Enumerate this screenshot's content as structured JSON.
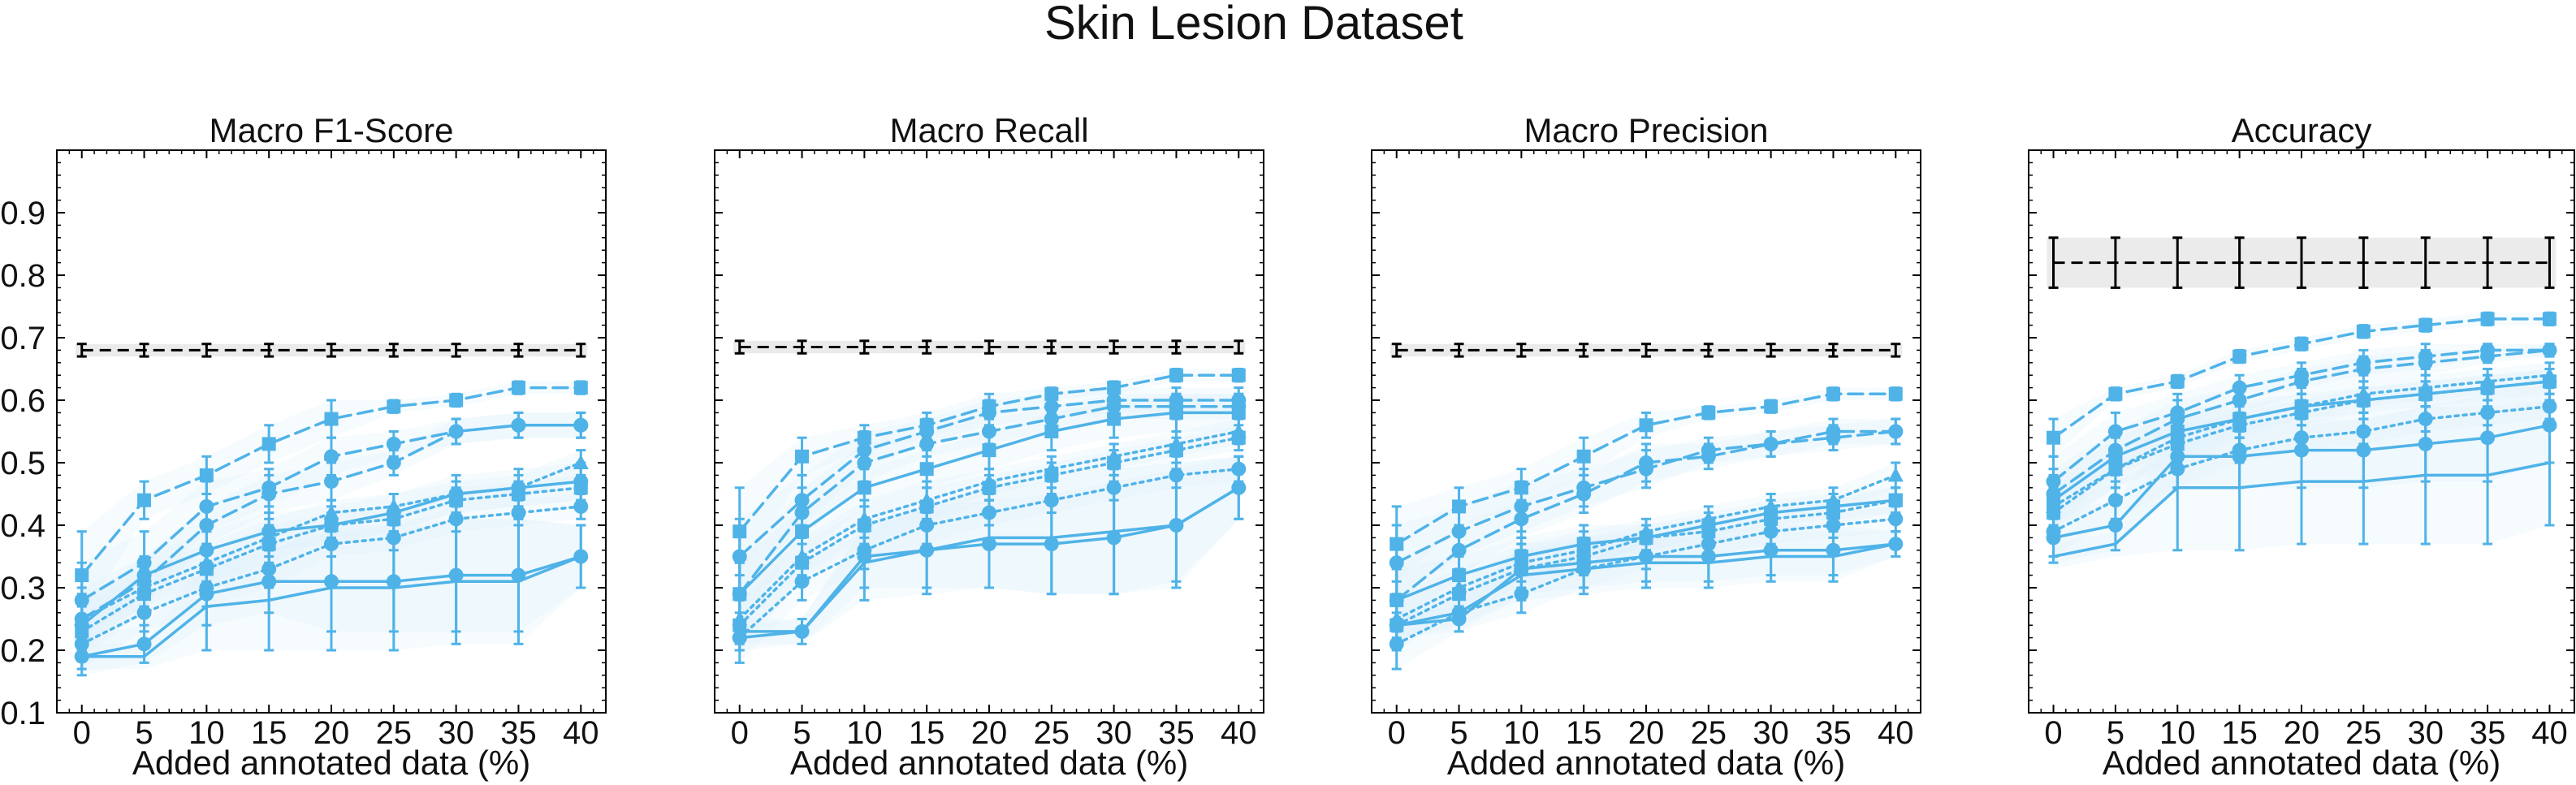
{
  "figure": {
    "title": "Skin Lesion Dataset"
  },
  "style": {
    "series_color": "#4FB3E8",
    "band_color": "#DDF0FB",
    "baseline_color": "#000000",
    "baseline_band_color": "#EBEBEB"
  },
  "chart_data": [
    {
      "type": "line",
      "title": "Macro F1-Score",
      "xlabel": "Added annotated data (%)",
      "ylabel": "",
      "x": [
        0,
        5,
        10,
        15,
        20,
        25,
        30,
        35,
        40
      ],
      "xlim": [
        -2,
        42
      ],
      "ylim": [
        0.1,
        1.0
      ],
      "yticks": [
        0.1,
        0.2,
        0.3,
        0.4,
        0.5,
        0.6,
        0.7,
        0.8,
        0.9
      ],
      "show_yticklabels": true,
      "baseline": {
        "value": 0.68,
        "err": 0.01
      },
      "series": [
        {
          "linestyle": "dashed",
          "marker": "square",
          "values": [
            0.32,
            0.44,
            0.48,
            0.53,
            0.57,
            0.59,
            0.6,
            0.62,
            0.62
          ],
          "err": [
            0.07,
            0.03,
            0.03,
            0.03,
            0.03,
            0.01,
            0.01,
            0.01,
            0.01
          ]
        },
        {
          "linestyle": "dashed",
          "marker": "circle",
          "values": [
            0.28,
            0.34,
            0.43,
            0.46,
            0.51,
            0.53,
            0.55,
            0.56,
            0.56
          ],
          "err": [
            0.06,
            0.05,
            0.04,
            0.03,
            0.03,
            0.02,
            0.02,
            0.02,
            0.02
          ]
        },
        {
          "linestyle": "dashed",
          "marker": "circle",
          "values": [
            0.25,
            0.31,
            0.4,
            0.45,
            0.47,
            0.5,
            0.55,
            0.56,
            0.56
          ],
          "err": [
            0.05,
            0.04,
            0.03,
            0.03,
            0.03,
            0.02,
            0.02,
            0.02,
            0.02
          ]
        },
        {
          "linestyle": "dotted",
          "marker": "triangle",
          "values": [
            0.25,
            0.3,
            0.34,
            0.38,
            0.42,
            0.43,
            0.45,
            0.46,
            0.5
          ],
          "err": [
            0.04,
            0.03,
            0.03,
            0.03,
            0.02,
            0.02,
            0.02,
            0.02,
            0.02
          ]
        },
        {
          "linestyle": "dotted",
          "marker": "square",
          "values": [
            0.23,
            0.29,
            0.33,
            0.37,
            0.4,
            0.41,
            0.44,
            0.45,
            0.46
          ],
          "err": [
            0.04,
            0.03,
            0.03,
            0.03,
            0.02,
            0.02,
            0.02,
            0.02,
            0.02
          ]
        },
        {
          "linestyle": "dotted",
          "marker": "circle",
          "values": [
            0.21,
            0.26,
            0.3,
            0.33,
            0.37,
            0.38,
            0.41,
            0.42,
            0.43
          ],
          "err": [
            0.04,
            0.03,
            0.03,
            0.03,
            0.02,
            0.02,
            0.02,
            0.02,
            0.02
          ]
        },
        {
          "linestyle": "solid",
          "marker": "circle",
          "values": [
            0.24,
            0.32,
            0.36,
            0.39,
            0.4,
            0.42,
            0.45,
            0.46,
            0.47
          ],
          "err": [
            0.04,
            0.03,
            0.03,
            0.03,
            0.03,
            0.03,
            0.03,
            0.03,
            0.03
          ]
        },
        {
          "linestyle": "solid",
          "marker": "circle",
          "values": [
            0.19,
            0.21,
            0.29,
            0.31,
            0.31,
            0.31,
            0.32,
            0.32,
            0.35
          ],
          "err": [
            0.03,
            0.03,
            0.05,
            0.05,
            0.08,
            0.08,
            0.09,
            0.09,
            0.05
          ]
        },
        {
          "linestyle": "solid",
          "marker": "none",
          "values": [
            0.19,
            0.19,
            0.27,
            0.28,
            0.3,
            0.3,
            0.31,
            0.31,
            0.35
          ],
          "err": [
            0,
            0,
            0.07,
            0.08,
            0.1,
            0.1,
            0.1,
            0.1,
            0.05
          ]
        }
      ]
    },
    {
      "type": "line",
      "title": "Macro Recall",
      "xlabel": "Added annotated data (%)",
      "ylabel": "",
      "x": [
        0,
        5,
        10,
        15,
        20,
        25,
        30,
        35,
        40
      ],
      "xlim": [
        -2,
        42
      ],
      "ylim": [
        0.1,
        1.0
      ],
      "yticks": [
        0.1,
        0.2,
        0.3,
        0.4,
        0.5,
        0.6,
        0.7,
        0.8,
        0.9
      ],
      "show_yticklabels": false,
      "baseline": {
        "value": 0.685,
        "err": 0.01
      },
      "series": [
        {
          "linestyle": "dashed",
          "marker": "square",
          "values": [
            0.39,
            0.51,
            0.54,
            0.56,
            0.59,
            0.61,
            0.62,
            0.64,
            0.64
          ],
          "err": [
            0.07,
            0.03,
            0.02,
            0.02,
            0.02,
            0.01,
            0.01,
            0.01,
            0.01
          ]
        },
        {
          "linestyle": "dashed",
          "marker": "circle",
          "values": [
            0.35,
            0.44,
            0.52,
            0.55,
            0.58,
            0.59,
            0.6,
            0.6,
            0.6
          ],
          "err": [
            0.06,
            0.04,
            0.03,
            0.02,
            0.02,
            0.02,
            0.02,
            0.02,
            0.02
          ]
        },
        {
          "linestyle": "dashed",
          "marker": "circle",
          "values": [
            0.29,
            0.42,
            0.5,
            0.53,
            0.55,
            0.57,
            0.59,
            0.59,
            0.59
          ],
          "err": [
            0.05,
            0.04,
            0.03,
            0.02,
            0.02,
            0.02,
            0.02,
            0.02,
            0.02
          ]
        },
        {
          "linestyle": "dotted",
          "marker": "triangle",
          "values": [
            0.25,
            0.35,
            0.41,
            0.44,
            0.47,
            0.49,
            0.51,
            0.53,
            0.55
          ],
          "err": [
            0.04,
            0.03,
            0.03,
            0.03,
            0.02,
            0.02,
            0.02,
            0.02,
            0.02
          ]
        },
        {
          "linestyle": "dotted",
          "marker": "square",
          "values": [
            0.24,
            0.34,
            0.4,
            0.43,
            0.46,
            0.48,
            0.5,
            0.52,
            0.54
          ],
          "err": [
            0.04,
            0.03,
            0.03,
            0.03,
            0.02,
            0.02,
            0.02,
            0.02,
            0.02
          ]
        },
        {
          "linestyle": "dotted",
          "marker": "circle",
          "values": [
            0.22,
            0.31,
            0.36,
            0.4,
            0.42,
            0.44,
            0.46,
            0.48,
            0.49
          ],
          "err": [
            0.04,
            0.03,
            0.03,
            0.03,
            0.02,
            0.02,
            0.02,
            0.02,
            0.02
          ]
        },
        {
          "linestyle": "solid",
          "marker": "square",
          "values": [
            0.29,
            0.39,
            0.46,
            0.49,
            0.52,
            0.55,
            0.57,
            0.58,
            0.58
          ],
          "err": [
            0.05,
            0.04,
            0.03,
            0.03,
            0.03,
            0.03,
            0.03,
            0.03,
            0.03
          ]
        },
        {
          "linestyle": "solid",
          "marker": "circle",
          "values": [
            0.22,
            0.23,
            0.35,
            0.36,
            0.37,
            0.37,
            0.38,
            0.4,
            0.46
          ],
          "err": [
            0.02,
            0.02,
            0.05,
            0.06,
            0.07,
            0.08,
            0.09,
            0.09,
            0.05
          ]
        },
        {
          "linestyle": "solid",
          "marker": "none",
          "values": [
            0.23,
            0.23,
            0.34,
            0.36,
            0.38,
            0.38,
            0.39,
            0.4,
            0.46
          ],
          "err": [
            0,
            0,
            0.06,
            0.07,
            0.08,
            0.09,
            0.1,
            0.1,
            0.05
          ]
        }
      ]
    },
    {
      "type": "line",
      "title": "Macro Precision",
      "xlabel": "Added annotated data (%)",
      "ylabel": "",
      "x": [
        0,
        5,
        10,
        15,
        20,
        25,
        30,
        35,
        40
      ],
      "xlim": [
        -2,
        42
      ],
      "ylim": [
        0.1,
        1.0
      ],
      "yticks": [
        0.1,
        0.2,
        0.3,
        0.4,
        0.5,
        0.6,
        0.7,
        0.8,
        0.9
      ],
      "show_yticklabels": false,
      "baseline": {
        "value": 0.68,
        "err": 0.01
      },
      "series": [
        {
          "linestyle": "dashed",
          "marker": "square",
          "values": [
            0.37,
            0.43,
            0.46,
            0.51,
            0.56,
            0.58,
            0.59,
            0.61,
            0.61
          ],
          "err": [
            0.06,
            0.03,
            0.03,
            0.03,
            0.02,
            0.01,
            0.01,
            0.01,
            0.01
          ]
        },
        {
          "linestyle": "dashed",
          "marker": "circle",
          "values": [
            0.34,
            0.39,
            0.43,
            0.46,
            0.49,
            0.52,
            0.53,
            0.54,
            0.55
          ],
          "err": [
            0.06,
            0.04,
            0.04,
            0.03,
            0.03,
            0.02,
            0.02,
            0.02,
            0.02
          ]
        },
        {
          "linestyle": "dashed",
          "marker": "circle",
          "values": [
            0.28,
            0.36,
            0.41,
            0.45,
            0.5,
            0.51,
            0.53,
            0.55,
            0.55
          ],
          "err": [
            0.05,
            0.04,
            0.03,
            0.03,
            0.03,
            0.02,
            0.02,
            0.02,
            0.02
          ]
        },
        {
          "linestyle": "dotted",
          "marker": "triangle",
          "values": [
            0.25,
            0.3,
            0.34,
            0.36,
            0.39,
            0.41,
            0.43,
            0.44,
            0.48
          ],
          "err": [
            0.04,
            0.03,
            0.03,
            0.03,
            0.02,
            0.02,
            0.02,
            0.02,
            0.02
          ]
        },
        {
          "linestyle": "dotted",
          "marker": "square",
          "values": [
            0.24,
            0.29,
            0.33,
            0.35,
            0.38,
            0.39,
            0.41,
            0.42,
            0.44
          ],
          "err": [
            0.04,
            0.03,
            0.03,
            0.03,
            0.02,
            0.02,
            0.02,
            0.02,
            0.02
          ]
        },
        {
          "linestyle": "dotted",
          "marker": "circle",
          "values": [
            0.21,
            0.26,
            0.29,
            0.33,
            0.35,
            0.37,
            0.39,
            0.4,
            0.41
          ],
          "err": [
            0.04,
            0.03,
            0.03,
            0.03,
            0.02,
            0.02,
            0.02,
            0.02,
            0.02
          ]
        },
        {
          "linestyle": "solid",
          "marker": "square",
          "values": [
            0.28,
            0.32,
            0.35,
            0.37,
            0.38,
            0.4,
            0.42,
            0.43,
            0.44
          ],
          "err": [
            0.05,
            0.03,
            0.03,
            0.03,
            0.02,
            0.02,
            0.02,
            0.02,
            0.02
          ]
        },
        {
          "linestyle": "solid",
          "marker": "circle",
          "values": [
            0.24,
            0.25,
            0.33,
            0.34,
            0.35,
            0.35,
            0.36,
            0.36,
            0.37
          ],
          "err": [
            0.02,
            0.02,
            0.04,
            0.04,
            0.04,
            0.04,
            0.04,
            0.04,
            0.02
          ]
        },
        {
          "linestyle": "solid",
          "marker": "none",
          "values": [
            0.24,
            0.26,
            0.32,
            0.33,
            0.34,
            0.34,
            0.35,
            0.35,
            0.37
          ],
          "err": [
            0,
            0,
            0.04,
            0.04,
            0.04,
            0.04,
            0.04,
            0.04,
            0.02
          ]
        }
      ]
    },
    {
      "type": "line",
      "title": "Accuracy",
      "xlabel": "Added annotated data (%)",
      "ylabel": "",
      "x": [
        0,
        5,
        10,
        15,
        20,
        25,
        30,
        35,
        40
      ],
      "xlim": [
        -2,
        42
      ],
      "ylim": [
        0.1,
        1.0
      ],
      "yticks": [
        0.1,
        0.2,
        0.3,
        0.4,
        0.5,
        0.6,
        0.7,
        0.8,
        0.9
      ],
      "show_yticklabels": false,
      "baseline": {
        "value": 0.82,
        "err": 0.04
      },
      "series": [
        {
          "linestyle": "dashed",
          "marker": "square",
          "values": [
            0.54,
            0.61,
            0.63,
            0.67,
            0.69,
            0.71,
            0.72,
            0.73,
            0.73
          ],
          "err": [
            0.03,
            0.01,
            0.01,
            0.01,
            0.01,
            0.01,
            0.01,
            0.01,
            0.01
          ]
        },
        {
          "linestyle": "dashed",
          "marker": "circle",
          "values": [
            0.47,
            0.55,
            0.58,
            0.62,
            0.64,
            0.66,
            0.67,
            0.68,
            0.68
          ],
          "err": [
            0.04,
            0.03,
            0.03,
            0.02,
            0.02,
            0.02,
            0.02,
            0.01,
            0.01
          ]
        },
        {
          "linestyle": "dashed",
          "marker": "circle",
          "values": [
            0.45,
            0.52,
            0.57,
            0.6,
            0.63,
            0.65,
            0.66,
            0.67,
            0.68
          ],
          "err": [
            0.04,
            0.03,
            0.03,
            0.02,
            0.02,
            0.02,
            0.02,
            0.01,
            0.01
          ]
        },
        {
          "linestyle": "dotted",
          "marker": "triangle",
          "values": [
            0.43,
            0.49,
            0.54,
            0.57,
            0.59,
            0.61,
            0.62,
            0.63,
            0.64
          ],
          "err": [
            0.03,
            0.03,
            0.03,
            0.02,
            0.02,
            0.02,
            0.02,
            0.02,
            0.02
          ]
        },
        {
          "linestyle": "dotted",
          "marker": "square",
          "values": [
            0.42,
            0.49,
            0.53,
            0.56,
            0.58,
            0.6,
            0.61,
            0.62,
            0.63
          ],
          "err": [
            0.03,
            0.03,
            0.03,
            0.02,
            0.02,
            0.02,
            0.02,
            0.02,
            0.02
          ]
        },
        {
          "linestyle": "dotted",
          "marker": "circle",
          "values": [
            0.39,
            0.44,
            0.49,
            0.52,
            0.54,
            0.55,
            0.57,
            0.58,
            0.59
          ],
          "err": [
            0.04,
            0.03,
            0.03,
            0.02,
            0.02,
            0.02,
            0.02,
            0.02,
            0.02
          ]
        },
        {
          "linestyle": "solid",
          "marker": "square",
          "values": [
            0.44,
            0.51,
            0.55,
            0.57,
            0.59,
            0.6,
            0.61,
            0.62,
            0.63
          ],
          "err": [
            0.04,
            0.03,
            0.03,
            0.03,
            0.02,
            0.02,
            0.02,
            0.02,
            0.02
          ]
        },
        {
          "linestyle": "solid",
          "marker": "circle",
          "values": [
            0.38,
            0.4,
            0.51,
            0.51,
            0.52,
            0.52,
            0.53,
            0.54,
            0.56
          ],
          "err": [
            0.04,
            0.04,
            0.05,
            0.05,
            0.06,
            0.06,
            0.06,
            0.07,
            0.06
          ]
        },
        {
          "linestyle": "solid",
          "marker": "none",
          "values": [
            0.35,
            0.37,
            0.46,
            0.46,
            0.47,
            0.47,
            0.48,
            0.48,
            0.5
          ],
          "err": [
            0,
            0,
            0.1,
            0.1,
            0.1,
            0.1,
            0.11,
            0.11,
            0.1
          ]
        }
      ]
    }
  ]
}
